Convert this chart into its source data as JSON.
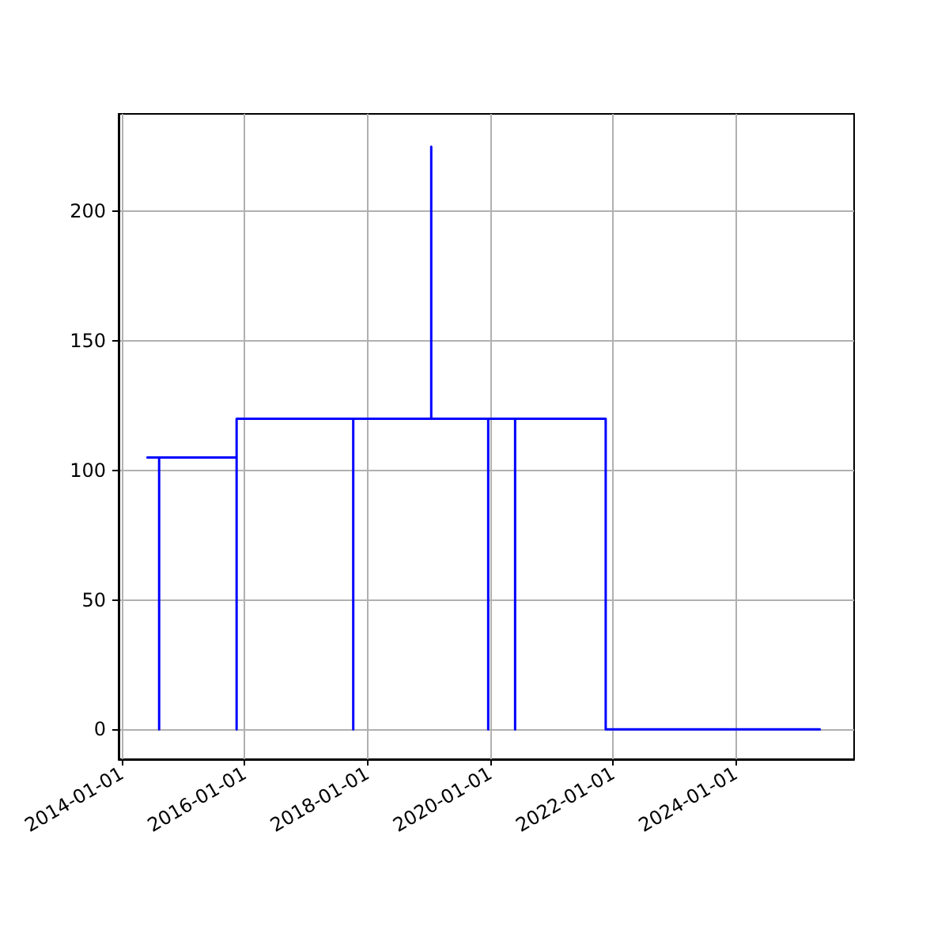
{
  "chart_data": {
    "type": "line",
    "x": [
      "2014-06-01",
      "2014-08-10",
      "2014-08-10",
      "2014-08-10",
      "2015-11-14",
      "2015-11-14",
      "2015-11-14",
      "2017-10-08",
      "2017-10-08",
      "2017-10-08",
      "2019-01-15",
      "2019-01-15",
      "2019-01-15",
      "2019-12-20",
      "2019-12-20",
      "2019-12-20",
      "2020-05-28",
      "2020-05-28",
      "2020-05-28",
      "2021-11-18",
      "2021-11-18",
      "2025-05-15"
    ],
    "series": [
      {
        "color": "#0000ff",
        "values": [
          105,
          105,
          0,
          105,
          105,
          0,
          120,
          120,
          0,
          120,
          120,
          225,
          120,
          120,
          0,
          120,
          120,
          0,
          120,
          120,
          0,
          0
        ]
      }
    ],
    "xlim": [
      "2013-12-12",
      "2025-12-05"
    ],
    "xticks": [
      "2014-01-01",
      "2016-01-01",
      "2018-01-01",
      "2020-01-01",
      "2022-01-01",
      "2024-01-01"
    ],
    "ylim": [
      -11.5,
      237.7
    ],
    "yticks": [
      0,
      50,
      100,
      150,
      200
    ],
    "grid": true,
    "marker": "none",
    "line_style": "solid"
  }
}
